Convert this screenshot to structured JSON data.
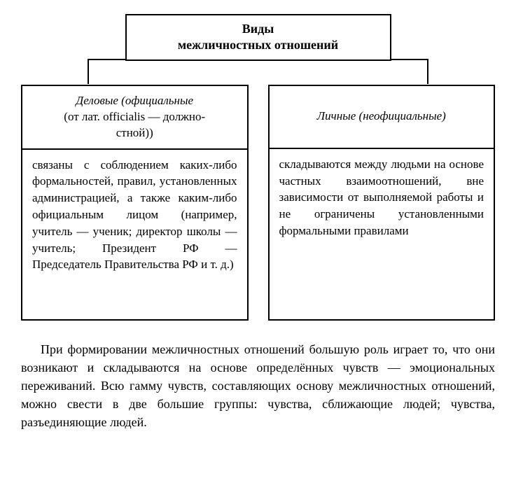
{
  "title": {
    "line1": "Виды",
    "line2": "межличностных отношений"
  },
  "left": {
    "header_italic": "Деловые (официальные",
    "header_plain1": "(от лат. officialis — должно-",
    "header_plain2": "стной))",
    "body": "связаны с соблюдением каких-либо формальностей, правил, установленных администрацией, а также каким-либо официальным лицом (например, учитель — ученик; директор школы — учитель; Президент РФ — Председатель Правительства РФ и т. д.)"
  },
  "right": {
    "header_italic": "Личные (неофициальные)",
    "body": "складываются между людьми на основе частных взаимоотношений, вне зависимости от выполняемой работы и не ограничены установленными формальными правилами"
  },
  "paragraph": "При формировании межличностных отношений большую роль играет то, что они возникают и складываются на основе определённых чувств — эмоциональных переживаний. Всю гамму чувств, составляющих основу межличностных отношений, можно свести в две большие группы: чувства, сближающие людей; чувства, разъединяющие людей.",
  "style": {
    "border_color": "#000000",
    "background": "#ffffff",
    "text_color": "#000000",
    "title_fontsize": 18,
    "header_fontsize": 17,
    "body_fontsize": 17,
    "paragraph_fontsize": 18,
    "font_family": "Georgia, Times New Roman, serif",
    "border_width": 2,
    "column_gap": 28
  }
}
